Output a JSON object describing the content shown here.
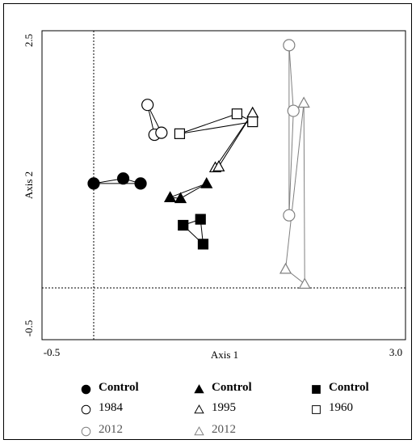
{
  "chart_data": {
    "type": "scatter",
    "title": "",
    "xlabel": "Axis 1",
    "ylabel": "Axis 2",
    "xlim": [
      -0.5,
      3.0
    ],
    "ylim": [
      -0.5,
      2.5
    ],
    "x_tick_labels": [
      "-0.5",
      "3.0"
    ],
    "y_tick_labels": [
      "-0.5",
      "2.5"
    ],
    "reference_lines": {
      "x": 0,
      "y": 0
    },
    "grid": false,
    "series": [
      {
        "name": "Control",
        "group": "circle",
        "marker": "circle",
        "fill": "black",
        "color": "#000000",
        "x": [
          0.0,
          0.34,
          0.54
        ],
        "y": [
          1.05,
          1.1,
          1.05
        ]
      },
      {
        "name": "1984",
        "group": "circle",
        "marker": "circle",
        "fill": "none",
        "color": "#000000",
        "x": [
          0.62,
          0.7,
          0.78
        ],
        "y": [
          1.84,
          1.54,
          1.56
        ]
      },
      {
        "name": "2012",
        "group": "circle",
        "marker": "circle",
        "fill": "none",
        "color": "#808080",
        "x": [
          2.25,
          2.3,
          2.25
        ],
        "y": [
          2.44,
          1.78,
          0.73
        ]
      },
      {
        "name": "Control",
        "group": "triangle",
        "marker": "triangle",
        "fill": "black",
        "color": "#000000",
        "x": [
          0.88,
          1.0,
          1.3
        ],
        "y": [
          0.91,
          0.9,
          1.05
        ]
      },
      {
        "name": "1995",
        "group": "triangle",
        "marker": "triangle",
        "fill": "none",
        "color": "#000000",
        "x": [
          1.4,
          1.44,
          1.83
        ],
        "y": [
          1.21,
          1.22,
          1.76
        ]
      },
      {
        "name": "2012",
        "group": "triangle",
        "marker": "triangle",
        "fill": "none",
        "color": "#808080",
        "x": [
          2.42,
          2.21,
          2.43
        ],
        "y": [
          1.86,
          0.19,
          0.04
        ]
      },
      {
        "name": "Control",
        "group": "square",
        "marker": "square",
        "fill": "black",
        "color": "#000000",
        "x": [
          1.03,
          1.23,
          1.26
        ],
        "y": [
          0.63,
          0.69,
          0.44
        ]
      },
      {
        "name": "1960",
        "group": "square",
        "marker": "square",
        "fill": "none",
        "color": "#000000",
        "x": [
          0.99,
          1.65,
          1.83
        ],
        "y": [
          1.55,
          1.75,
          1.67
        ]
      }
    ],
    "connections": [
      {
        "from": [
          0.0,
          1.05
        ],
        "to": [
          0.34,
          1.1
        ]
      },
      {
        "from": [
          0.34,
          1.1
        ],
        "to": [
          0.54,
          1.05
        ]
      },
      {
        "from": [
          0.54,
          1.05
        ],
        "to": [
          0.0,
          1.05
        ]
      },
      {
        "from": [
          0.62,
          1.84
        ],
        "to": [
          0.7,
          1.54
        ]
      },
      {
        "from": [
          0.7,
          1.54
        ],
        "to": [
          0.78,
          1.56
        ]
      },
      {
        "from": [
          0.78,
          1.56
        ],
        "to": [
          0.62,
          1.84
        ]
      },
      {
        "from": [
          2.25,
          2.44
        ],
        "to": [
          2.3,
          1.78
        ]
      },
      {
        "from": [
          2.3,
          1.78
        ],
        "to": [
          2.25,
          0.73
        ]
      },
      {
        "from": [
          2.25,
          0.73
        ],
        "to": [
          2.25,
          2.44
        ]
      },
      {
        "from": [
          0.88,
          0.91
        ],
        "to": [
          1.0,
          0.9
        ]
      },
      {
        "from": [
          1.0,
          0.9
        ],
        "to": [
          1.3,
          1.05
        ]
      },
      {
        "from": [
          1.3,
          1.05
        ],
        "to": [
          0.88,
          0.91
        ]
      },
      {
        "from": [
          1.4,
          1.21
        ],
        "to": [
          1.44,
          1.22
        ]
      },
      {
        "from": [
          1.44,
          1.22
        ],
        "to": [
          1.83,
          1.76
        ]
      },
      {
        "from": [
          1.83,
          1.76
        ],
        "to": [
          1.4,
          1.21
        ]
      },
      {
        "from": [
          2.42,
          1.86
        ],
        "to": [
          2.21,
          0.19
        ]
      },
      {
        "from": [
          2.21,
          0.19
        ],
        "to": [
          2.43,
          0.04
        ]
      },
      {
        "from": [
          2.43,
          0.04
        ],
        "to": [
          2.42,
          1.86
        ]
      },
      {
        "from": [
          1.03,
          0.63
        ],
        "to": [
          1.23,
          0.69
        ]
      },
      {
        "from": [
          1.23,
          0.69
        ],
        "to": [
          1.26,
          0.44
        ]
      },
      {
        "from": [
          1.26,
          0.44
        ],
        "to": [
          1.03,
          0.63
        ]
      },
      {
        "from": [
          0.99,
          1.55
        ],
        "to": [
          1.65,
          1.75
        ]
      },
      {
        "from": [
          1.65,
          1.75
        ],
        "to": [
          1.83,
          1.67
        ]
      },
      {
        "from": [
          1.83,
          1.67
        ],
        "to": [
          0.99,
          1.55
        ]
      }
    ],
    "legend": {
      "placement": "bottom",
      "columns": [
        [
          {
            "label": "Control",
            "marker": "circle",
            "fill": "black",
            "color": "#000000",
            "bold": true
          },
          {
            "label": "1984",
            "marker": "circle",
            "fill": "none",
            "color": "#000000",
            "bold": false
          },
          {
            "label": "2012",
            "marker": "circle",
            "fill": "none",
            "color": "#808080",
            "bold": false
          }
        ],
        [
          {
            "label": "Control",
            "marker": "triangle",
            "fill": "black",
            "color": "#000000",
            "bold": true
          },
          {
            "label": "1995",
            "marker": "triangle",
            "fill": "none",
            "color": "#000000",
            "bold": false
          },
          {
            "label": "2012",
            "marker": "triangle",
            "fill": "none",
            "color": "#808080",
            "bold": false
          }
        ],
        [
          {
            "label": "Control",
            "marker": "square",
            "fill": "black",
            "color": "#000000",
            "bold": true
          },
          {
            "label": "1960",
            "marker": "square",
            "fill": "none",
            "color": "#000000",
            "bold": false
          }
        ]
      ]
    }
  }
}
